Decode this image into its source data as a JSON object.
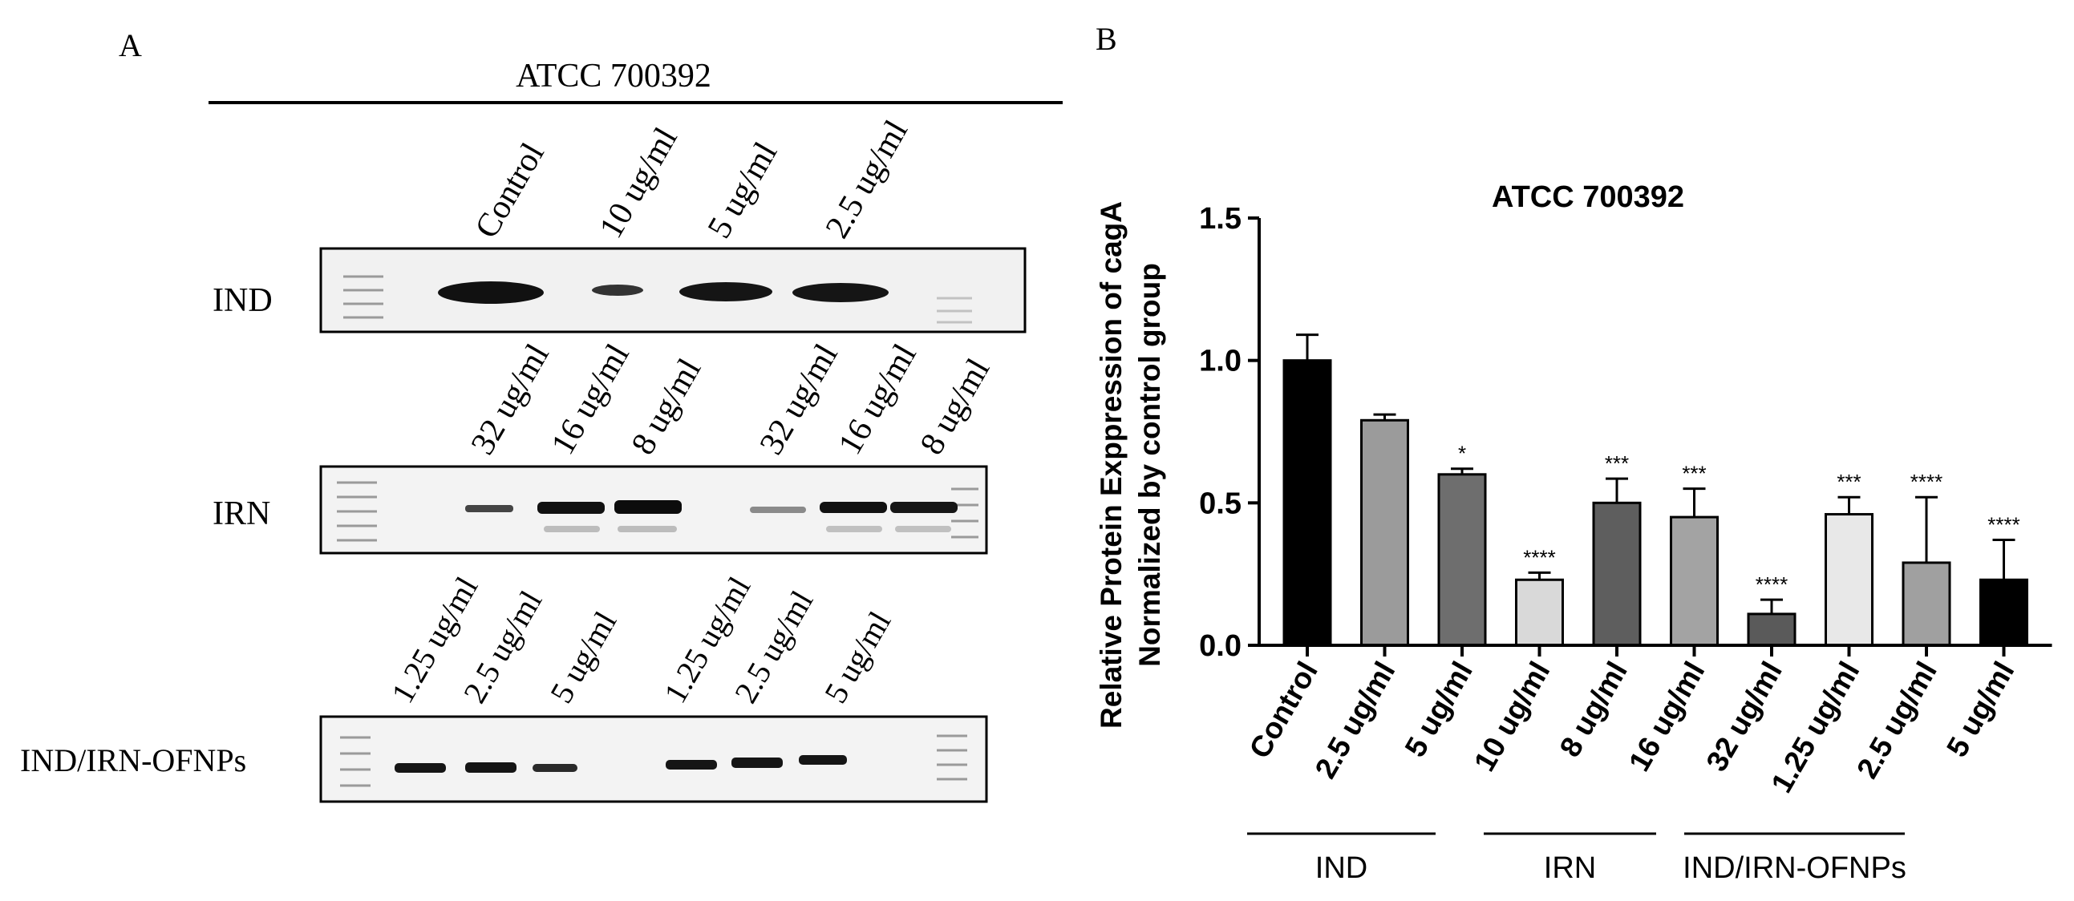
{
  "panel_a": {
    "letter": "A",
    "strain_title": "ATCC 700392",
    "blots": [
      {
        "name": "IND",
        "lanes": [
          "Control",
          "10 ug/ml",
          "5 ug/ml",
          "2.5 ug/ml"
        ]
      },
      {
        "name": "IRN",
        "lanes": [
          "32 ug/ml",
          "16 ug/ml",
          "8 ug/ml",
          "32 ug/ml",
          "16 ug/ml",
          "8 ug/ml"
        ]
      },
      {
        "name": "IND/IRN-OFNPs",
        "lanes": [
          "1.25 ug/ml",
          "2.5 ug/ml",
          "5 ug/ml",
          "1.25 ug/ml",
          "2.5 ug/ml",
          "5 ug/ml"
        ]
      }
    ]
  },
  "panel_b": {
    "letter": "B"
  },
  "chart_data": {
    "type": "bar",
    "title": "ATCC 700392",
    "ylabel_line1": "Relative Protein Exppression  of cagA",
    "ylabel_line2": "Normalized by control group",
    "xlabel": "",
    "ylim": [
      0,
      1.5
    ],
    "yticks": [
      "0.0",
      "0.5",
      "1.0",
      "1.5"
    ],
    "categories": [
      "Control",
      "2.5 ug/ml",
      "5 ug/ml",
      "10 ug/ml",
      "8 ug/ml",
      "16 ug/ml",
      "32 ug/ml",
      "1.25 ug/ml",
      "2.5 ug/ml",
      "5 ug/ml"
    ],
    "values": [
      1.0,
      0.79,
      0.6,
      0.23,
      0.5,
      0.45,
      0.11,
      0.46,
      0.29,
      0.23
    ],
    "errors": [
      0.09,
      0.02,
      0.02,
      0.025,
      0.085,
      0.1,
      0.05,
      0.06,
      0.23,
      0.14
    ],
    "significance": [
      "",
      "",
      "*",
      "****",
      "***",
      "***",
      "****",
      "***",
      "****",
      "****"
    ],
    "colors": [
      "#000000",
      "#9b9b9b",
      "#6e6e6e",
      "#d9d9d9",
      "#5e5e5e",
      "#a3a3a3",
      "#5a5a5a",
      "#e8e8e8",
      "#a0a0a0",
      "#000000"
    ],
    "groups": [
      {
        "label": "IND",
        "from": 1,
        "to": 3
      },
      {
        "label": "IRN",
        "from": 4,
        "to": 6
      },
      {
        "label": "IND/IRN-OFNPs",
        "from": 7,
        "to": 9
      }
    ]
  }
}
